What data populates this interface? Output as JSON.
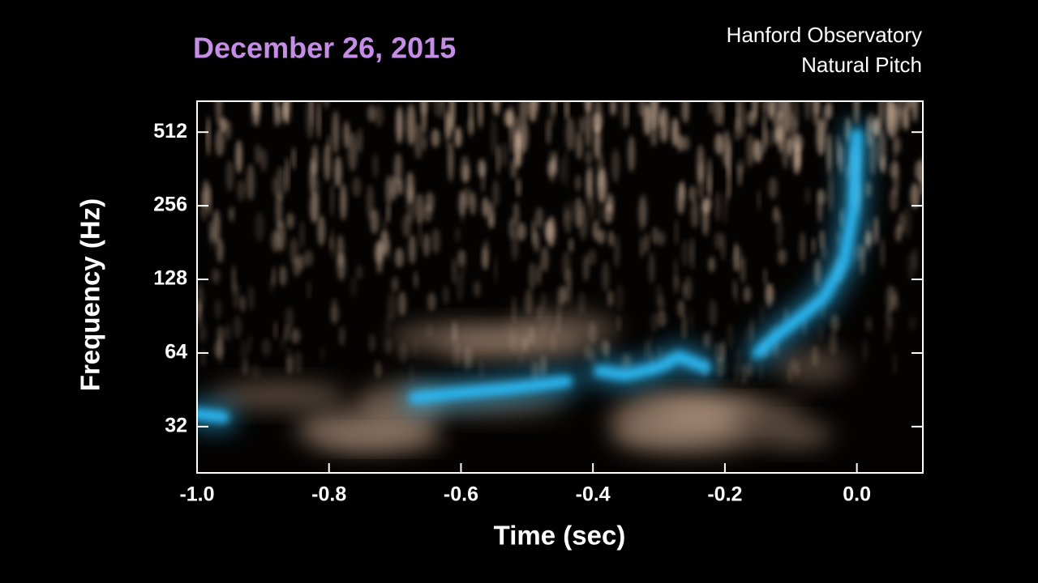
{
  "chart_data": {
    "type": "spectrogram",
    "title": "December 26, 2015",
    "title_color": "#c58de6",
    "subtitle": [
      "Hanford Observatory",
      "Natural Pitch"
    ],
    "x_label": "Time (sec)",
    "y_label": "Frequency (Hz)",
    "xlim": [
      -1.0,
      0.1
    ],
    "ylim": [
      20.7,
      685
    ],
    "y_log": true,
    "xticks": [
      {
        "value": -1.0,
        "label": "-1.0"
      },
      {
        "value": -0.8,
        "label": "-0.8"
      },
      {
        "value": -0.6,
        "label": "-0.6"
      },
      {
        "value": -0.4,
        "label": "-0.4"
      },
      {
        "value": -0.2,
        "label": "-0.2"
      },
      {
        "value": 0,
        "label": "0.0"
      }
    ],
    "yticks": [
      32,
      64,
      128,
      256,
      512
    ],
    "color": "#29b6f0",
    "x": [
      -1.0,
      -0.96,
      -0.8,
      -0.67,
      -0.6,
      -0.52,
      -0.44,
      -0.42,
      -0.39,
      -0.35,
      -0.3,
      -0.27,
      -0.23,
      -0.2,
      -0.15,
      -0.12,
      -0.08,
      -0.05,
      -0.02,
      -0.005,
      0.0
    ],
    "values": [
      36,
      35,
      null,
      42,
      44,
      46,
      49,
      null,
      54,
      52,
      56,
      62,
      56,
      null,
      64,
      76,
      92,
      108,
      150,
      250,
      500
    ]
  }
}
